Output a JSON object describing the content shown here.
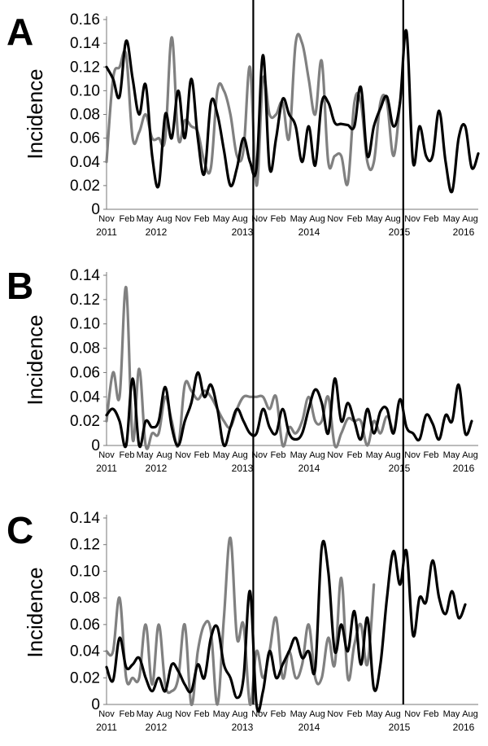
{
  "chart_data": [
    {
      "type": "line",
      "panel_label": "A",
      "ylabel": "Incidence",
      "ylim": [
        0,
        0.16
      ],
      "yticks": [
        "0",
        "0.02",
        "0.04",
        "0.06",
        "0.08",
        "0.10",
        "0.12",
        "0.14",
        "0.16"
      ],
      "x_tick_labels": [
        "Nov",
        "Feb",
        "May",
        "Aug",
        "Nov",
        "Feb",
        "May",
        "Aug",
        "Nov",
        "Feb",
        "May",
        "Aug",
        "Nov",
        "Feb",
        "May",
        "Aug",
        "Nov",
        "Feb",
        "May",
        "Aug"
      ],
      "x_year_labels": [
        "2011",
        "2012",
        "2013",
        "2014",
        "2015",
        "2016"
      ],
      "xlim": [
        0,
        57
      ],
      "vlines_x": [
        22.5,
        45.5
      ],
      "grid": false,
      "series": [
        {
          "color": "#000000",
          "values": [
            0.12,
            0.11,
            0.095,
            0.142,
            0.11,
            0.08,
            0.105,
            0.045,
            0.02,
            0.08,
            0.06,
            0.1,
            0.06,
            0.11,
            0.06,
            0.03,
            0.09,
            0.08,
            0.05,
            0.02,
            0.035,
            0.06,
            0.04,
            0.035,
            0.13,
            0.035,
            0.06,
            0.093,
            0.08,
            0.07,
            0.04,
            0.07,
            0.037,
            0.09,
            0.09,
            0.073,
            0.072,
            0.071,
            0.07,
            0.103,
            0.045,
            0.07,
            0.085,
            0.095,
            0.07,
            0.09,
            0.15,
            0.04,
            0.07,
            0.045,
            0.045,
            0.083,
            0.04,
            0.015,
            0.06,
            0.07,
            0.035,
            0.047
          ]
        },
        {
          "color": "#808080",
          "values": [
            0.04,
            0.11,
            0.12,
            0.13,
            0.06,
            0.065,
            0.08,
            0.06,
            0.06,
            0.06,
            0.145,
            0.06,
            0.075,
            0.07,
            0.065,
            0.04,
            0.035,
            0.1,
            0.1,
            0.08,
            0.045,
            0.05,
            0.12,
            0.02,
            0.11,
            0.08,
            0.08,
            0.09,
            0.06,
            0.14,
            0.14,
            0.11,
            0.08,
            0.125,
            0.04,
            0.045,
            0.045,
            0.022,
            0.09,
            0.09,
            0.04,
            0.04,
            0.09,
            0.09,
            0.045,
            0.09
          ]
        }
      ]
    },
    {
      "type": "line",
      "panel_label": "B",
      "ylabel": "Incidence",
      "ylim": [
        0,
        0.14
      ],
      "yticks": [
        "0",
        "0.02",
        "0.04",
        "0.06",
        "0.08",
        "0.10",
        "0.12",
        "0.14"
      ],
      "x_tick_labels": [
        "Nov",
        "Feb",
        "May",
        "Aug",
        "Nov",
        "Feb",
        "May",
        "Aug",
        "Nov",
        "Feb",
        "May",
        "Aug",
        "Nov",
        "Feb",
        "May",
        "Aug",
        "Nov",
        "Feb",
        "May",
        "Aug"
      ],
      "x_year_labels": [
        "2011",
        "2012",
        "2013",
        "2014",
        "2015",
        "2016"
      ],
      "xlim": [
        0,
        57
      ],
      "vlines_x": [
        22.5,
        45.5
      ],
      "grid": false,
      "series": [
        {
          "color": "#000000",
          "values": [
            0.025,
            0.03,
            0.02,
            0.0,
            0.055,
            0.0,
            0.02,
            0.015,
            0.02,
            0.048,
            0.015,
            0.0,
            0.02,
            0.035,
            0.06,
            0.04,
            0.05,
            0.03,
            0.0,
            0.015,
            0.03,
            0.02,
            0.01,
            0.01,
            0.03,
            0.015,
            0.01,
            0.03,
            0.01,
            0.005,
            0.01,
            0.03,
            0.046,
            0.035,
            0.01,
            0.055,
            0.02,
            0.035,
            0.02,
            0.005,
            0.03,
            0.01,
            0.028,
            0.03,
            0.01,
            0.038,
            0.015,
            0.01,
            0.005,
            0.025,
            0.018,
            0.005,
            0.025,
            0.02,
            0.05,
            0.01,
            0.02
          ]
        },
        {
          "color": "#808080",
          "values": [
            0.02,
            0.06,
            0.04,
            0.13,
            0.005,
            0.063,
            0.0,
            0.01,
            0.01,
            0.04,
            0.02,
            0.0,
            0.05,
            0.045,
            0.038,
            0.045,
            0.04,
            0.03,
            0.02,
            0.015,
            0.03,
            0.04,
            0.04,
            0.04,
            0.04,
            0.03,
            0.04,
            0.0,
            0.015,
            0.01,
            0.02,
            0.04,
            0.02,
            0.02,
            0.04,
            0.0,
            0.01,
            0.022,
            0.02,
            0.02,
            0.0,
            0.02,
            0.01,
            0.024,
            0.01
          ]
        }
      ]
    },
    {
      "type": "line",
      "panel_label": "C",
      "ylabel": "Incidence",
      "ylim": [
        0,
        0.14
      ],
      "yticks": [
        "0",
        "0.02",
        "0.04",
        "0.06",
        "0.08",
        "0.10",
        "0.12",
        "0.14"
      ],
      "x_tick_labels": [
        "Nov",
        "Feb",
        "May",
        "Aug",
        "Nov",
        "Feb",
        "May",
        "Aug",
        "Nov",
        "Feb",
        "May",
        "Aug",
        "Nov",
        "Feb",
        "May",
        "Aug",
        "Nov",
        "Feb",
        "May",
        "Aug"
      ],
      "x_year_labels": [
        "2011",
        "2012",
        "2013",
        "2014",
        "2015",
        "2016"
      ],
      "xlim": [
        0,
        57
      ],
      "vlines_x": [
        22.5,
        45.5
      ],
      "grid": false,
      "series": [
        {
          "color": "#000000",
          "values": [
            0.028,
            0.018,
            0.05,
            0.028,
            0.03,
            0.035,
            0.02,
            0.01,
            0.02,
            0.01,
            0.03,
            0.025,
            0.015,
            0.01,
            0.03,
            0.02,
            0.05,
            0.058,
            0.03,
            0.02,
            0.005,
            0.02,
            0.085,
            0.0,
            0.01,
            0.04,
            0.02,
            0.03,
            0.04,
            0.05,
            0.035,
            0.04,
            0.027,
            0.118,
            0.1,
            0.04,
            0.06,
            0.04,
            0.07,
            0.03,
            0.065,
            0.012,
            0.03,
            0.08,
            0.115,
            0.09,
            0.115,
            0.052,
            0.08,
            0.077,
            0.108,
            0.08,
            0.068,
            0.085,
            0.065,
            0.075
          ]
        },
        {
          "color": "#808080",
          "values": [
            0.04,
            0.04,
            0.08,
            0.02,
            0.02,
            0.02,
            0.06,
            0.015,
            0.06,
            0.015,
            0.01,
            0.02,
            0.06,
            0.0,
            0.04,
            0.06,
            0.055,
            0.0,
            0.065,
            0.125,
            0.05,
            0.06,
            0.0,
            0.04,
            0.02,
            0.04,
            0.065,
            0.02,
            0.04,
            0.02,
            0.03,
            0.06,
            0.02,
            0.02,
            0.05,
            0.03,
            0.095,
            0.02,
            0.045,
            0.06,
            0.03,
            0.09
          ]
        }
      ]
    }
  ]
}
